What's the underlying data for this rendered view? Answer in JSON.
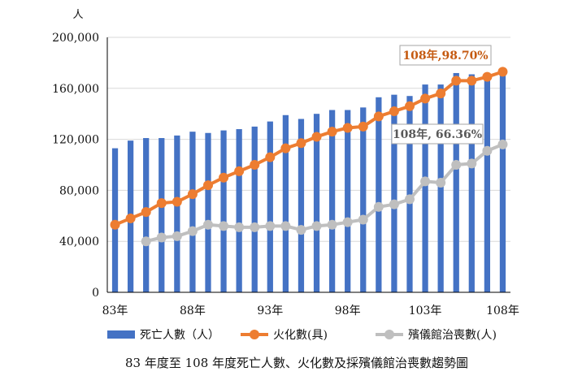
{
  "chart_data": {
    "type": "bar+line",
    "y_unit": "人",
    "ylim": [
      0,
      200000
    ],
    "y_ticks": [
      "0",
      "40,000",
      "80,000",
      "120,000",
      "160,000",
      "200,000"
    ],
    "x_tick_labels": [
      {
        "year": 83,
        "label": "83年"
      },
      {
        "year": 88,
        "label": "88年"
      },
      {
        "year": 93,
        "label": "93年"
      },
      {
        "year": 98,
        "label": "98年"
      },
      {
        "year": 103,
        "label": "103年"
      },
      {
        "year": 108,
        "label": "108年"
      }
    ],
    "x": [
      83,
      84,
      85,
      86,
      87,
      88,
      89,
      90,
      91,
      92,
      93,
      94,
      95,
      96,
      97,
      98,
      99,
      100,
      101,
      102,
      103,
      104,
      105,
      106,
      107,
      108
    ],
    "series": [
      {
        "name": "死亡人數（人）",
        "kind": "bar",
        "color": "#4472c4",
        "values": [
          113000,
          119000,
          121000,
          121000,
          123000,
          126000,
          125000,
          127000,
          128000,
          130000,
          134000,
          139000,
          136000,
          140000,
          143000,
          143000,
          145000,
          153000,
          155000,
          154000,
          163000,
          163000,
          172000,
          171000,
          172000,
          176000
        ]
      },
      {
        "name": "火化數(具)",
        "kind": "line",
        "color": "#ed7d31",
        "values": [
          53000,
          58000,
          63000,
          70000,
          71000,
          77000,
          84000,
          90000,
          95000,
          100000,
          106000,
          113000,
          117000,
          122000,
          126000,
          129000,
          130000,
          138000,
          142000,
          146000,
          152000,
          156000,
          166000,
          166000,
          169000,
          173000
        ]
      },
      {
        "name": "殯儀館治喪數(人)",
        "kind": "line",
        "color": "#bfbfbf",
        "values": [
          null,
          null,
          40000,
          43000,
          44000,
          48000,
          53000,
          52000,
          51000,
          51000,
          52000,
          52000,
          49000,
          52000,
          53000,
          55000,
          57000,
          67000,
          69000,
          73000,
          87000,
          86000,
          100000,
          101000,
          111000,
          116000
        ]
      }
    ],
    "annotations": [
      {
        "text": "108年,98.70%",
        "color": "#c55a11"
      },
      {
        "text": "108年, 66.36%",
        "color": "#595959"
      }
    ],
    "caption": "83 年度至 108 年度死亡人數、火化數及採殯儀館治喪數趨勢圖",
    "grid": "horizontal",
    "legend_position": "bottom"
  }
}
